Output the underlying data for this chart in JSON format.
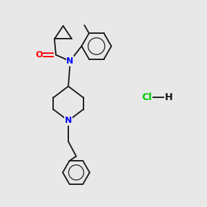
{
  "background_color": "#e8e8e8",
  "bond_color": "#1a1a1a",
  "N_color": "#0000ff",
  "O_color": "#ff0000",
  "Cl_color": "#00cc00",
  "H_color": "#1a1a1a",
  "figsize": [
    3.0,
    3.0
  ],
  "dpi": 100,
  "xlim": [
    0,
    10
  ],
  "ylim": [
    0,
    10
  ]
}
